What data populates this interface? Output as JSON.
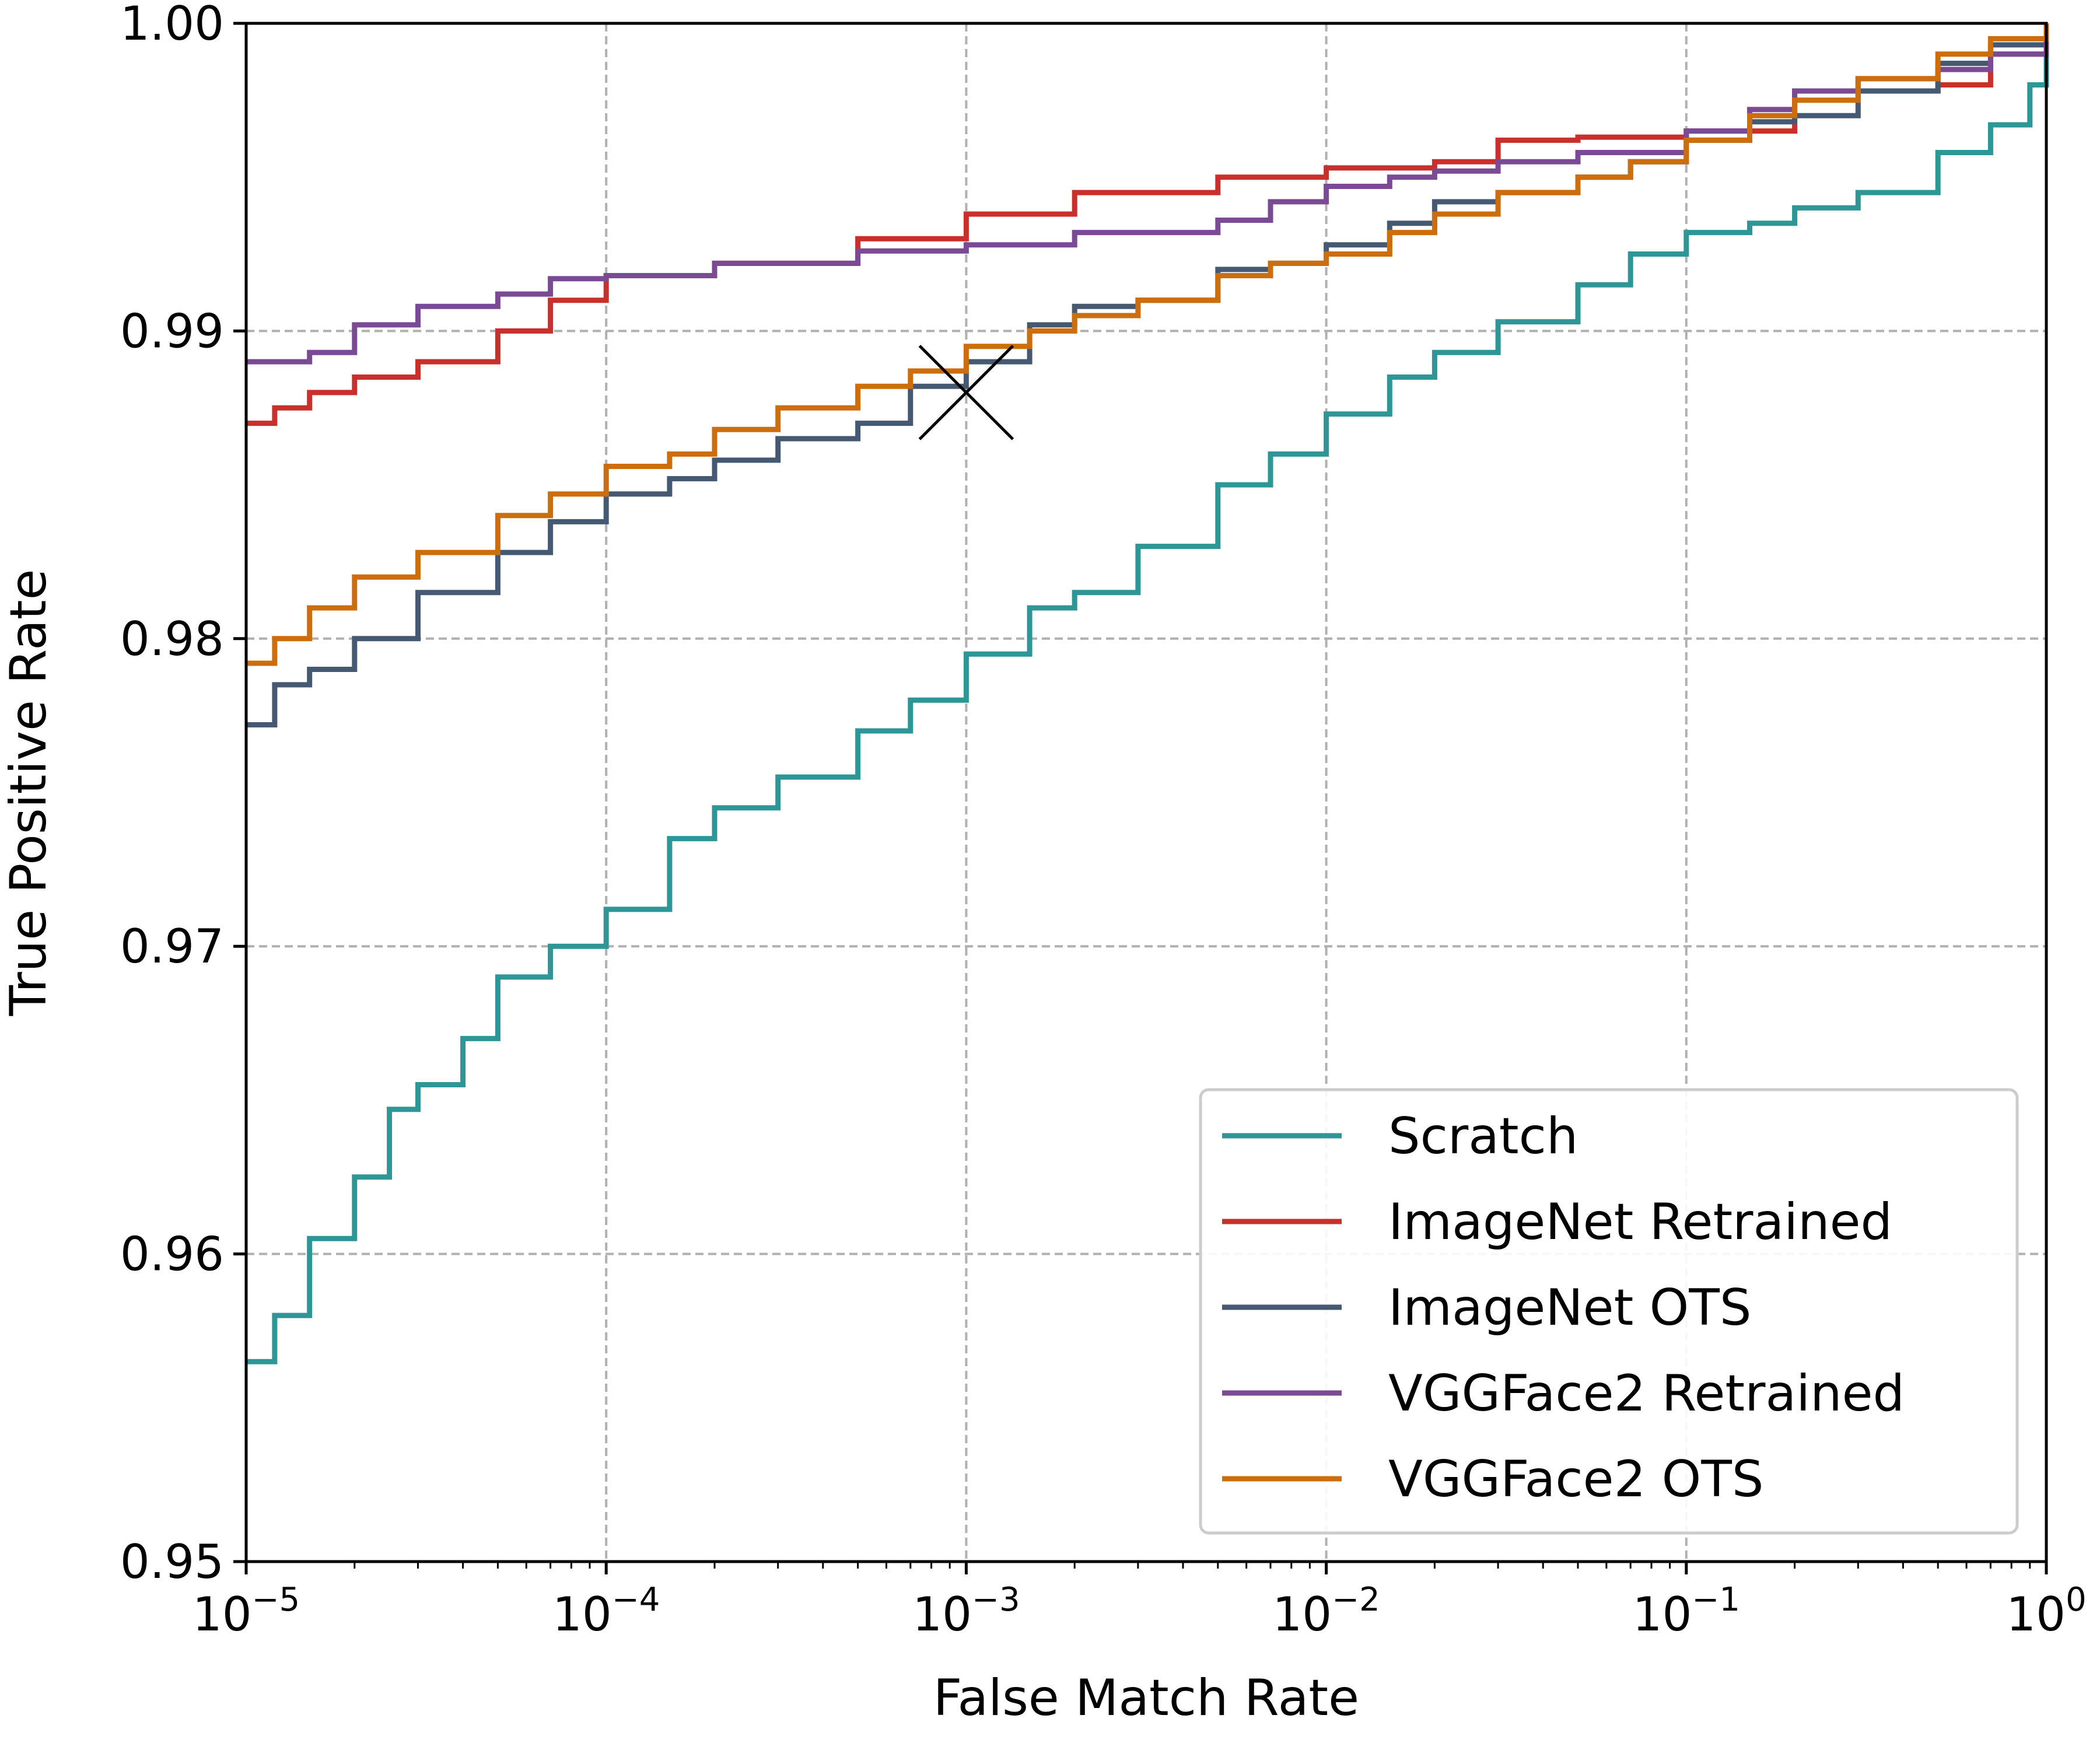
{
  "chart_data": {
    "type": "line",
    "title": "",
    "xlabel": "False Match Rate",
    "ylabel": "True Positive Rate",
    "xscale": "log",
    "xlim": [
      1e-05,
      1
    ],
    "ylim": [
      0.95,
      1.0
    ],
    "grid": true,
    "legend_position": "lower-right",
    "x_ticks": [
      {
        "base": "10",
        "exp": "−5",
        "value": 1e-05
      },
      {
        "base": "10",
        "exp": "−4",
        "value": 0.0001
      },
      {
        "base": "10",
        "exp": "−3",
        "value": 0.001
      },
      {
        "base": "10",
        "exp": "−2",
        "value": 0.01
      },
      {
        "base": "10",
        "exp": "−1",
        "value": 0.1
      },
      {
        "base": "10",
        "exp": "0",
        "value": 1
      }
    ],
    "y_ticks": [
      {
        "label": "0.95",
        "value": 0.95
      },
      {
        "label": "0.96",
        "value": 0.96
      },
      {
        "label": "0.97",
        "value": 0.97
      },
      {
        "label": "0.98",
        "value": 0.98
      },
      {
        "label": "0.99",
        "value": 0.99
      },
      {
        "label": "1.00",
        "value": 1.0
      }
    ],
    "marker": {
      "x": 0.001,
      "y": 0.988,
      "symbol": "x"
    },
    "series": [
      {
        "name": "Scratch",
        "color": "#2e9696",
        "x": [
          1e-05,
          1.2e-05,
          1.5e-05,
          2e-05,
          2.5e-05,
          3e-05,
          4e-05,
          5e-05,
          7e-05,
          0.0001,
          0.00015,
          0.0002,
          0.0003,
          0.0005,
          0.0007,
          0.001,
          0.0015,
          0.002,
          0.003,
          0.005,
          0.007,
          0.01,
          0.015,
          0.02,
          0.03,
          0.05,
          0.07,
          0.1,
          0.15,
          0.2,
          0.3,
          0.5,
          0.7,
          0.9,
          1.0
        ],
        "y": [
          0.9565,
          0.958,
          0.9605,
          0.9625,
          0.9647,
          0.9655,
          0.967,
          0.969,
          0.97,
          0.9712,
          0.9735,
          0.9745,
          0.9755,
          0.977,
          0.978,
          0.9795,
          0.981,
          0.9815,
          0.983,
          0.985,
          0.986,
          0.9873,
          0.9885,
          0.9893,
          0.9903,
          0.9915,
          0.9925,
          0.9932,
          0.9935,
          0.994,
          0.9945,
          0.9958,
          0.9967,
          0.998,
          0.9995
        ]
      },
      {
        "name": "ImageNet Retrained",
        "color": "#c9302c",
        "x": [
          1e-05,
          1.2e-05,
          1.5e-05,
          2e-05,
          3e-05,
          5e-05,
          7e-05,
          0.0001,
          0.0002,
          0.0005,
          0.001,
          0.002,
          0.005,
          0.01,
          0.02,
          0.03,
          0.05,
          0.1,
          0.2,
          0.3,
          0.5,
          0.7,
          1.0
        ],
        "y": [
          0.987,
          0.9875,
          0.988,
          0.9885,
          0.989,
          0.99,
          0.991,
          0.9918,
          0.9922,
          0.993,
          0.9938,
          0.9945,
          0.995,
          0.9953,
          0.9955,
          0.9962,
          0.9963,
          0.9965,
          0.9978,
          0.9978,
          0.998,
          0.999,
          1.0
        ]
      },
      {
        "name": "ImageNet OTS",
        "color": "#455a72",
        "x": [
          1e-05,
          1.2e-05,
          1.5e-05,
          2e-05,
          3e-05,
          5e-05,
          7e-05,
          0.0001,
          0.00015,
          0.0002,
          0.0003,
          0.0005,
          0.0007,
          0.001,
          0.0015,
          0.002,
          0.003,
          0.005,
          0.007,
          0.01,
          0.015,
          0.02,
          0.03,
          0.05,
          0.07,
          0.1,
          0.15,
          0.2,
          0.3,
          0.5,
          0.7,
          1.0
        ],
        "y": [
          0.9772,
          0.9785,
          0.979,
          0.98,
          0.9815,
          0.9828,
          0.9838,
          0.9847,
          0.9852,
          0.9858,
          0.9865,
          0.987,
          0.9882,
          0.989,
          0.9902,
          0.9908,
          0.991,
          0.992,
          0.9922,
          0.9928,
          0.9935,
          0.9942,
          0.9945,
          0.995,
          0.9955,
          0.9962,
          0.9968,
          0.997,
          0.9978,
          0.9987,
          0.9993,
          1.0
        ]
      },
      {
        "name": "VGGFace2 Retrained",
        "color": "#7b4a95",
        "x": [
          1e-05,
          1.5e-05,
          2e-05,
          3e-05,
          5e-05,
          7e-05,
          0.0001,
          0.0002,
          0.0005,
          0.001,
          0.002,
          0.005,
          0.007,
          0.01,
          0.015,
          0.02,
          0.03,
          0.05,
          0.1,
          0.15,
          0.2,
          0.3,
          0.5,
          0.7,
          1.0
        ],
        "y": [
          0.989,
          0.9893,
          0.9902,
          0.9908,
          0.9912,
          0.9917,
          0.9918,
          0.9922,
          0.9926,
          0.9928,
          0.9932,
          0.9936,
          0.9942,
          0.9947,
          0.995,
          0.9952,
          0.9955,
          0.9958,
          0.9965,
          0.9972,
          0.9978,
          0.9982,
          0.9985,
          0.999,
          1.0
        ]
      },
      {
        "name": "VGGFace2 OTS",
        "color": "#cc6d0e",
        "x": [
          1e-05,
          1.2e-05,
          1.5e-05,
          2e-05,
          3e-05,
          5e-05,
          7e-05,
          0.0001,
          0.00015,
          0.0002,
          0.0003,
          0.0005,
          0.0007,
          0.001,
          0.0015,
          0.002,
          0.003,
          0.005,
          0.007,
          0.01,
          0.015,
          0.02,
          0.03,
          0.05,
          0.07,
          0.1,
          0.15,
          0.2,
          0.3,
          0.5,
          0.7,
          1.0
        ],
        "y": [
          0.9792,
          0.98,
          0.981,
          0.982,
          0.9828,
          0.984,
          0.9847,
          0.9856,
          0.986,
          0.9868,
          0.9875,
          0.9882,
          0.9887,
          0.9895,
          0.99,
          0.9905,
          0.991,
          0.9918,
          0.9922,
          0.9925,
          0.9932,
          0.9938,
          0.9945,
          0.995,
          0.9955,
          0.9962,
          0.997,
          0.9975,
          0.9982,
          0.999,
          0.9995,
          1.0
        ]
      }
    ]
  }
}
